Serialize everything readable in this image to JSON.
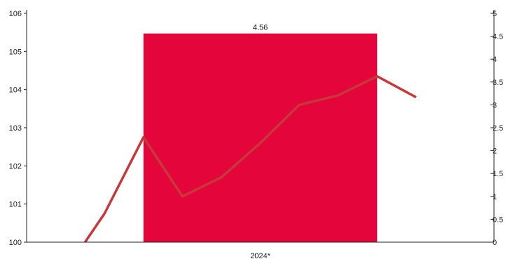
{
  "chart_data": {
    "type": "bar",
    "categories": [
      "2024*"
    ],
    "bar": {
      "values": [
        4.56
      ],
      "data_labels": [
        "4.56"
      ],
      "axis": "right",
      "color": "#e4063a"
    },
    "line": {
      "axis": "left",
      "color": "#c8383a",
      "points": [
        {
          "x": 1.5,
          "y": 100.0
        },
        {
          "x": 2.0,
          "y": 100.75
        },
        {
          "x": 3.0,
          "y": 102.75
        },
        {
          "x": 4.0,
          "y": 101.2
        },
        {
          "x": 5.0,
          "y": 101.7
        },
        {
          "x": 6.0,
          "y": 102.6
        },
        {
          "x": 7.0,
          "y": 103.6
        },
        {
          "x": 8.0,
          "y": 103.85
        },
        {
          "x": 9.0,
          "y": 104.35
        },
        {
          "x": 10.0,
          "y": 103.8
        }
      ]
    },
    "x_range": [
      0,
      12
    ],
    "bar_span": [
      3,
      9
    ],
    "y_left": {
      "range": [
        100,
        106
      ],
      "ticks": [
        100,
        101,
        102,
        103,
        104,
        105,
        106
      ],
      "tick_labels": [
        "100",
        "101",
        "102",
        "103",
        "104",
        "105",
        "106"
      ]
    },
    "y_right": {
      "range": [
        0,
        5
      ],
      "ticks": [
        0,
        0.5,
        1,
        1.5,
        2,
        2.5,
        3,
        3.5,
        4,
        4.5,
        5
      ],
      "tick_labels": [
        "0",
        "0.5",
        "1",
        "1.5",
        "2",
        "2.5",
        "3",
        "3.5",
        "4",
        "4.5",
        "5"
      ]
    },
    "grid": false,
    "legend": "none",
    "title": "",
    "xlabel": "",
    "ylabel": ""
  }
}
